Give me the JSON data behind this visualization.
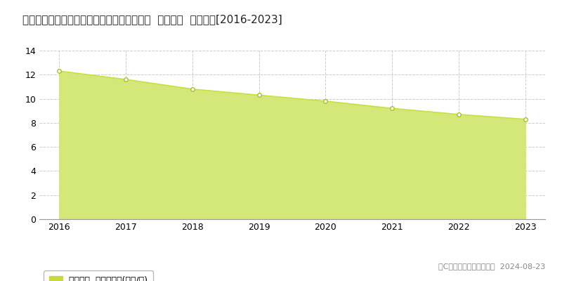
{
  "title": "愛知県知多郡南知多町大字師崎字向島８番４  基準地価  地価推移[2016-2023]",
  "years": [
    2016,
    2017,
    2018,
    2019,
    2020,
    2021,
    2022,
    2023
  ],
  "values": [
    12.3,
    11.6,
    10.8,
    10.3,
    9.8,
    9.2,
    8.7,
    8.3
  ],
  "ylim": [
    0,
    14
  ],
  "yticks": [
    0,
    2,
    4,
    6,
    8,
    10,
    12,
    14
  ],
  "line_color": "#c8e040",
  "fill_color": "#d4e87a",
  "fill_alpha": 1.0,
  "marker_color": "white",
  "marker_edge_color": "#a8c020",
  "bg_color": "#ffffff",
  "grid_color": "#cccccc",
  "legend_label": "基準地価  平均坪単価(万円/坪)",
  "copyright_text": "（C）土地価格ドットコム  2024-08-23",
  "legend_box_color": "#c8d840",
  "title_fontsize": 11,
  "axis_fontsize": 9,
  "legend_fontsize": 9,
  "copyright_fontsize": 8
}
